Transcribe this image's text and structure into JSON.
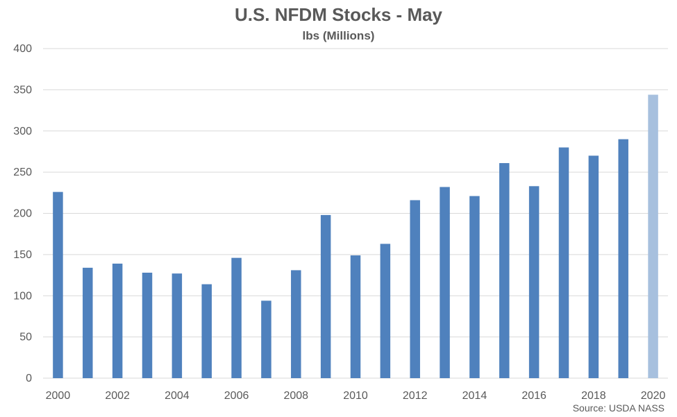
{
  "chart_data": {
    "type": "bar",
    "title": "U.S. NFDM Stocks - May",
    "subtitle": "lbs (Millions)",
    "source": "Source: USDA NASS",
    "xlabel": "",
    "ylabel": "",
    "categories": [
      "2000",
      "2001",
      "2002",
      "2003",
      "2004",
      "2005",
      "2006",
      "2007",
      "2008",
      "2009",
      "2010",
      "2011",
      "2012",
      "2013",
      "2014",
      "2015",
      "2016",
      "2017",
      "2018",
      "2019",
      "2020"
    ],
    "x_tick_labels": [
      "2000",
      "2002",
      "2004",
      "2006",
      "2008",
      "2010",
      "2012",
      "2014",
      "2016",
      "2018",
      "2020"
    ],
    "values": [
      226,
      134,
      139,
      128,
      127,
      114,
      146,
      94,
      131,
      198,
      149,
      163,
      216,
      232,
      221,
      261,
      233,
      280,
      270,
      290,
      344
    ],
    "ylim": [
      0,
      400
    ],
    "y_ticks": [
      0,
      50,
      100,
      150,
      200,
      250,
      300,
      350,
      400
    ],
    "grid": true,
    "legend": "none",
    "colors": {
      "bar": "#4f81bd",
      "bar_highlight": "#a7c0de",
      "grid": "#d9d9d9",
      "text": "#595959"
    },
    "highlight_category": "2020"
  }
}
